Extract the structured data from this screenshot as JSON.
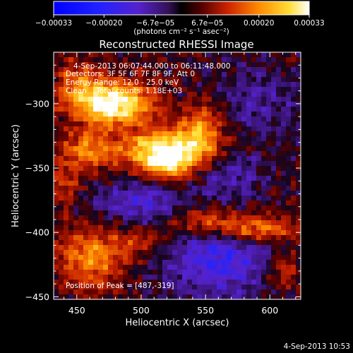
{
  "chart_data": {
    "type": "heatmap",
    "title": "Reconstructed RHESSI Image",
    "xlabel": "Heliocentric X (arcsec)",
    "ylabel": "Heliocentric Y (arcsec)",
    "xlim": [
      432,
      624
    ],
    "ylim": [
      -452,
      -260
    ],
    "x_ticks": [
      450,
      500,
      550,
      600
    ],
    "x_tick_labels": [
      "450",
      "500",
      "550",
      "600"
    ],
    "y_ticks": [
      -450,
      -400,
      -350,
      -300
    ],
    "y_tick_labels": [
      "−450",
      "−400",
      "−350",
      "−300"
    ],
    "colorbar": {
      "range": [
        -0.00033,
        0.00033
      ],
      "ticks": [
        -0.00033,
        -0.0002,
        -6.7e-05,
        6.7e-05,
        0.0002,
        0.00033
      ],
      "tick_labels": [
        "−0.00033",
        "−0.00020",
        "−6.7e−05",
        "6.7e−05",
        "0.00020",
        "0.00033"
      ],
      "unit_label": "(photons cm⁻² s⁻¹ asec⁻²)"
    },
    "annotations": {
      "time_range": "4-Sep-2013 06:07:44.000 to 06:11:48.000",
      "detectors": "Detectors: 3F 5F 6F 7F 8F 9F, Att 0",
      "energy_range": "Energy Range: 12.0 - 25.0 keV",
      "clean_counts": "Clean    Total counts: 1.18E+03",
      "peak": "Position of Peak = [487,-319]"
    },
    "peak_position": [
      487,
      -319
    ],
    "sources": [
      {
        "x": 478,
        "y": -300,
        "sx": 22,
        "sy": 12,
        "amp": 1.0
      },
      {
        "x": 520,
        "y": -336,
        "sx": 24,
        "sy": 11,
        "amp": 0.95
      },
      {
        "x": 458,
        "y": -336,
        "sx": 14,
        "sy": 10,
        "amp": 0.55
      },
      {
        "x": 548,
        "y": -318,
        "sx": 12,
        "sy": 14,
        "amp": 0.5
      },
      {
        "x": 460,
        "y": -420,
        "sx": 18,
        "sy": 16,
        "amp": 0.55
      },
      {
        "x": 585,
        "y": -397,
        "sx": 24,
        "sy": 8,
        "amp": 0.65
      },
      {
        "x": 545,
        "y": -390,
        "sx": 18,
        "sy": 8,
        "amp": 0.4
      },
      {
        "x": 500,
        "y": -405,
        "sx": 20,
        "sy": 10,
        "amp": 0.3
      },
      {
        "x": 450,
        "y": -282,
        "sx": 12,
        "sy": 12,
        "amp": 0.35
      },
      {
        "x": 610,
        "y": -430,
        "sx": 10,
        "sy": 10,
        "amp": 0.35
      },
      {
        "x": 520,
        "y": -350,
        "sx": 14,
        "sy": 8,
        "amp": 0.45
      },
      {
        "x": 440,
        "y": -365,
        "sx": 10,
        "sy": 12,
        "amp": 0.3
      }
    ],
    "negative_regions": [
      {
        "x": 560,
        "y": -420,
        "sx": 30,
        "sy": 22,
        "amp": 0.55
      },
      {
        "x": 500,
        "y": -378,
        "sx": 26,
        "sy": 14,
        "amp": 0.4
      },
      {
        "x": 590,
        "y": -300,
        "sx": 26,
        "sy": 20,
        "amp": 0.25
      },
      {
        "x": 570,
        "y": -355,
        "sx": 18,
        "sy": 12,
        "amp": 0.3
      }
    ]
  },
  "footer": {
    "timestamp": "4-Sep-2013 10:53"
  },
  "colors": {
    "background": "#000000",
    "foreground": "#ffffff"
  }
}
